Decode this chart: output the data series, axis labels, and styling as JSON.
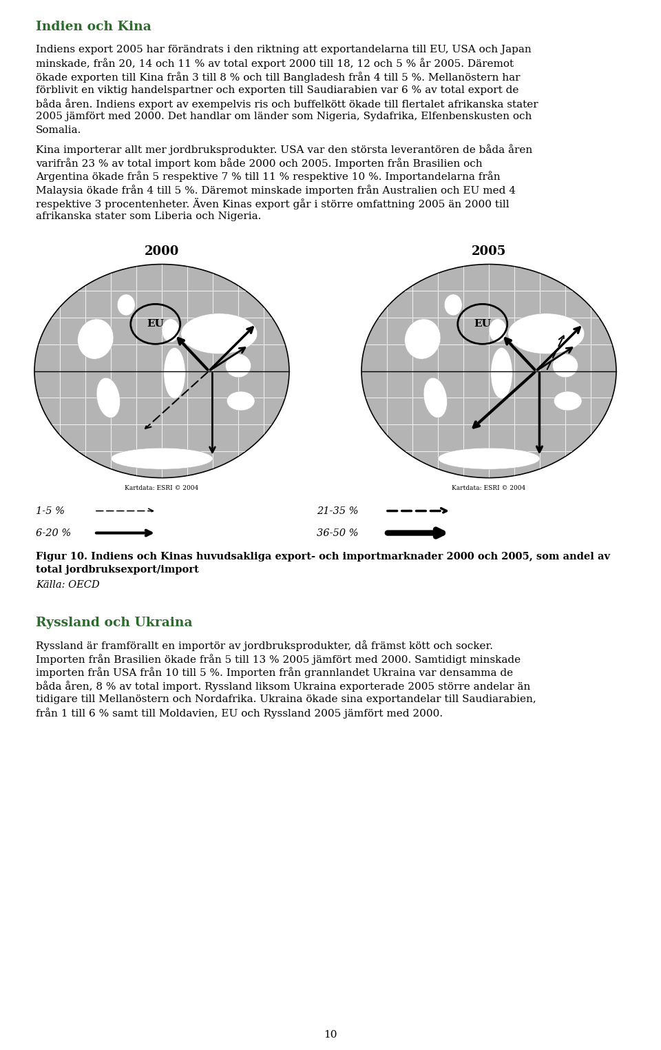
{
  "bg_color": "#ffffff",
  "heading1_color": "#2d6a2d",
  "heading2_color": "#2d6a2d",
  "text_color": "#000000",
  "heading1": "Indien och Kina",
  "p1_lines": [
    "Indiens export 2005 har förändrats i den riktning att exportandelarna till EU, USA och Japan",
    "minskade, från 20, 14 och 11 % av total export 2000 till 18, 12 och 5 % år 2005. Däremot",
    "ökade exporten till Kina från 3 till 8 % och till Bangladesh från 4 till 5 %. Mellanöstern har",
    "förblivit en viktig handelspartner och exporten till Saudiarabien var 6 % av total export de",
    "båda åren. Indiens export av exempelvis ris och buffelkött ökade till flertalet afrikanska stater",
    "2005 jämfört med 2000. Det handlar om länder som Nigeria, Sydafrika, Elfenbenskusten och",
    "Somalia."
  ],
  "p2_lines": [
    "Kina importerar allt mer jordbruksprodukter. USA var den största leverantören de båda åren",
    "varifrån 23 % av total import kom både 2000 och 2005. Importen från Brasilien och",
    "Argentina ökade från 5 respektive 7 % till 11 % respektive 10 %. Importandelarna från",
    "Malaysia ökade från 4 till 5 %. Däremot minskade importen från Australien och EU med 4",
    "respektive 3 procentenheter. Även Kinas export går i större omfattning 2005 än 2000 till",
    "afrikanska stater som Liberia och Nigeria."
  ],
  "year2000": "2000",
  "year2005": "2005",
  "eu_label": "EU",
  "kartdata": "Kartdata: ESRI © 2004",
  "legend_1_5": "1-5 %",
  "legend_6_20": "6-20 %",
  "legend_21_35": "21-35 %",
  "legend_36_50": "36-50 %",
  "fig_cap1": "Figur 10. Indiens och Kinas huvudsakliga export- och importmarknader 2000 och 2005, som andel av",
  "fig_cap2": "total jordbruksexport/import",
  "fig_source": "Källa: OECD",
  "heading2": "Ryssland och Ukraina",
  "p3_lines": [
    "Ryssland är framförallt en importör av jordbruksprodukter, då främst kött och socker.",
    "Importen från Brasilien ökade från 5 till 13 % 2005 jämfört med 2000. Samtidigt minskade",
    "importen från USA från 10 till 5 %. Importen från grannlandet Ukraina var densamma de",
    "båda åren, 8 % av total import. Ryssland liksom Ukraina exporterade 2005 större andelar än",
    "tidigare till Mellanöstern och Nordafrika. Ukraina ökade sina exportandelar till Saudiarabien,",
    "från 1 till 6 % samt till Moldavien, EU och Ryssland 2005 jämfört med 2000."
  ],
  "page_number": "10",
  "ml": 52,
  "mr": 907,
  "fs": 11.0,
  "lh": 19.5,
  "heading1_fs": 13.5,
  "heading2_fs": 13.5,
  "globe_map_color": "#b8b8b8",
  "globe_land_color": "#d8d8d8",
  "globe_water_color": "#c0c0c0",
  "globe_grid_color": "#e0e0e0"
}
